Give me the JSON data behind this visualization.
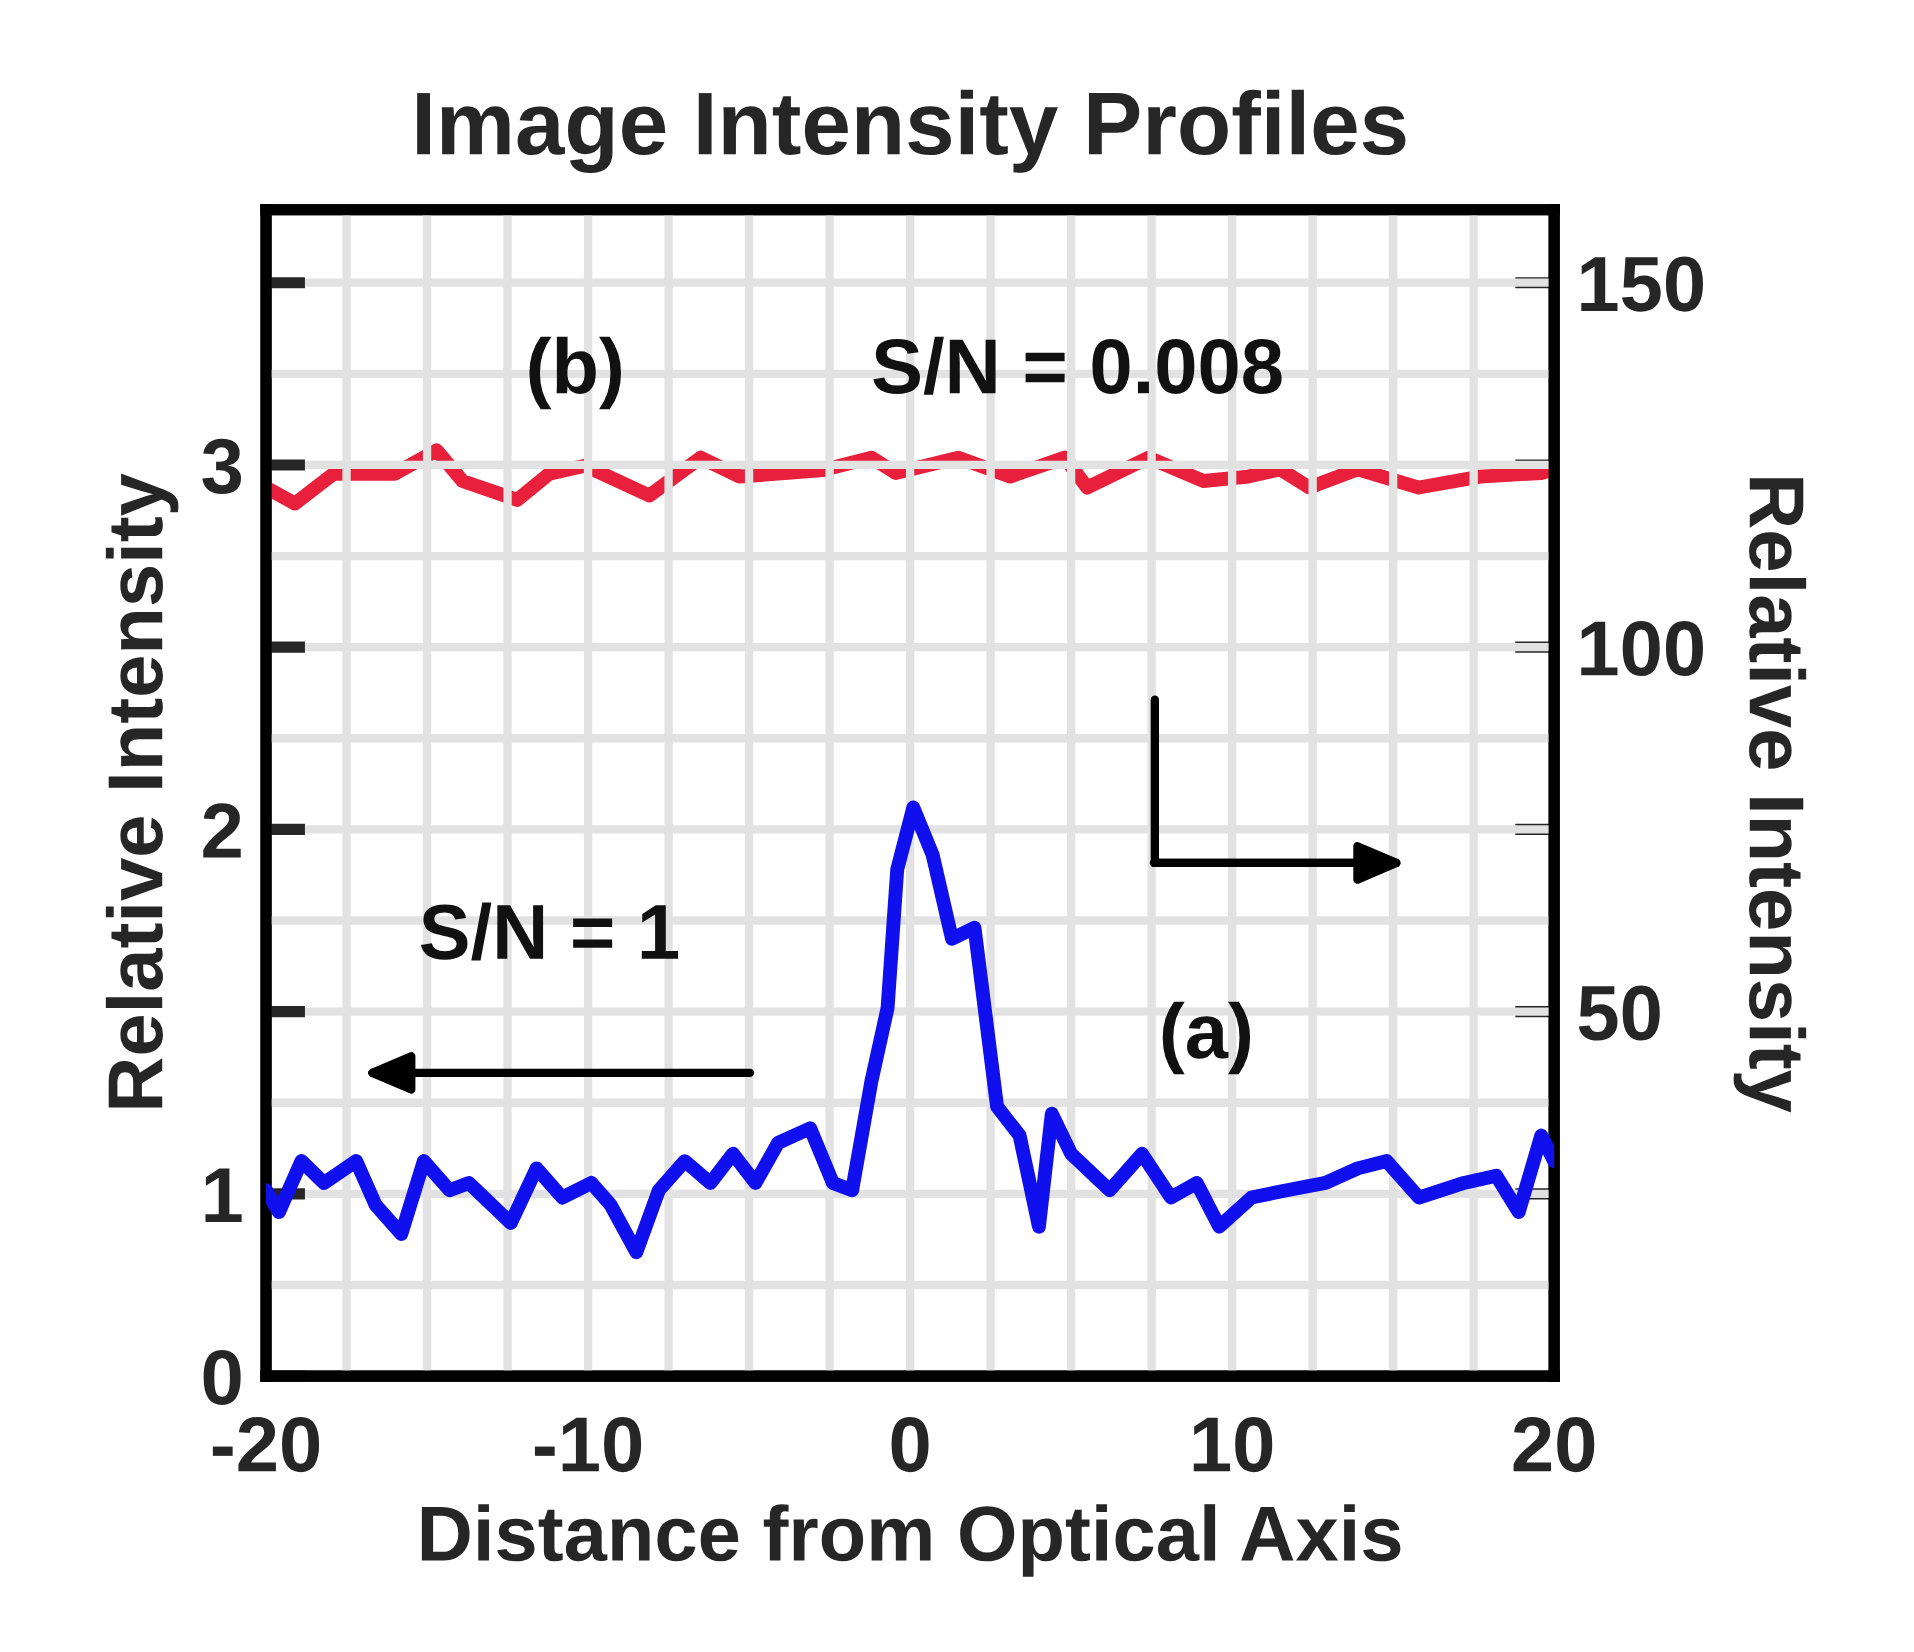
{
  "chart_data": {
    "type": "line",
    "title": "Image Intensity Profiles",
    "xlabel": "Distance from Optical Axis",
    "ylabel": "Relative Intensity",
    "y2label": "Relative Intensity",
    "xlim": [
      -20,
      20
    ],
    "xticks": [
      -20,
      {
        "value": -15,
        "label": null
      },
      -10,
      {
        "value": -5,
        "label": null
      },
      0,
      {
        "value": 5,
        "label": null
      },
      10,
      {
        "value": 15,
        "label": null
      },
      20
    ],
    "ylim": [
      0.5,
      3.7
    ],
    "yticks": [
      {
        "value": 0.5,
        "label": "0"
      },
      1,
      {
        "value": 1.5,
        "label": null
      },
      2,
      {
        "value": 2.5,
        "label": null
      },
      3,
      {
        "value": 3.5,
        "label": null
      }
    ],
    "y2lim": [
      0,
      160
    ],
    "y2ticks": [
      {
        "value": 25,
        "label": null
      },
      50,
      {
        "value": 75,
        "label": null
      },
      100,
      {
        "value": 125,
        "label": null
      },
      150
    ],
    "grid": true,
    "marker": "none",
    "line_style": "solid",
    "series": [
      {
        "name": "(a)",
        "color": "#1010ee",
        "x": [
          -20,
          -19.6,
          -18.9,
          -18.2,
          -17.2,
          -16.6,
          -15.8,
          -15.1,
          -14.3,
          -13.7,
          -12.4,
          -11.6,
          -10.8,
          -9.9,
          -9.3,
          -8.5,
          -7.8,
          -7.0,
          -6.2,
          -5.5,
          -4.8,
          -4.1,
          -3.1,
          -2.4,
          -1.8,
          -1.2,
          -0.7,
          -0.4,
          0.1,
          0.7,
          1.3,
          2.0,
          2.7,
          3.4,
          4.0,
          4.4,
          5.0,
          6.2,
          7.2,
          8.1,
          8.9,
          9.6,
          10.6,
          11.7,
          12.9,
          13.9,
          14.8,
          15.8,
          17.2,
          18.2,
          18.9,
          19.6,
          20
        ],
        "values": [
          1.01,
          0.95,
          1.09,
          1.03,
          1.09,
          0.97,
          0.89,
          1.09,
          1.01,
          1.03,
          0.92,
          1.07,
          0.99,
          1.03,
          0.97,
          0.84,
          1.01,
          1.09,
          1.03,
          1.11,
          1.03,
          1.14,
          1.18,
          1.03,
          1.01,
          1.31,
          1.51,
          1.89,
          2.06,
          1.93,
          1.7,
          1.73,
          1.24,
          1.16,
          0.91,
          1.22,
          1.11,
          1.01,
          1.11,
          0.99,
          1.03,
          0.91,
          0.99,
          1.01,
          1.03,
          1.07,
          1.09,
          0.99,
          1.03,
          1.05,
          0.95,
          1.16,
          1.09
        ]
      },
      {
        "name": "(b)",
        "color": "#e8203c",
        "axis": "y2",
        "x": [
          -20,
          -19.1,
          -17.9,
          -16.0,
          -14.7,
          -13.9,
          -12.2,
          -11.2,
          -10.1,
          -8.1,
          -6.5,
          -5.3,
          -4.1,
          -2.7,
          -1.2,
          -0.45,
          1.5,
          3.1,
          4.8,
          5.5,
          7.4,
          9.1,
          10.5,
          11.5,
          12.4,
          13.9,
          15.8,
          17.7,
          19.6,
          20
        ],
        "values": [
          121.9,
          119.7,
          123.8,
          123.8,
          127.0,
          122.8,
          120.2,
          123.8,
          124.9,
          120.8,
          126.0,
          123.4,
          123.8,
          124.3,
          126.0,
          123.9,
          126.0,
          123.4,
          126.0,
          121.9,
          126.0,
          122.8,
          123.4,
          124.4,
          121.9,
          124.4,
          121.9,
          123.4,
          123.9,
          124.4
        ]
      }
    ],
    "annotations": [
      "S/N = 1",
      "S/N = 0.008"
    ]
  }
}
